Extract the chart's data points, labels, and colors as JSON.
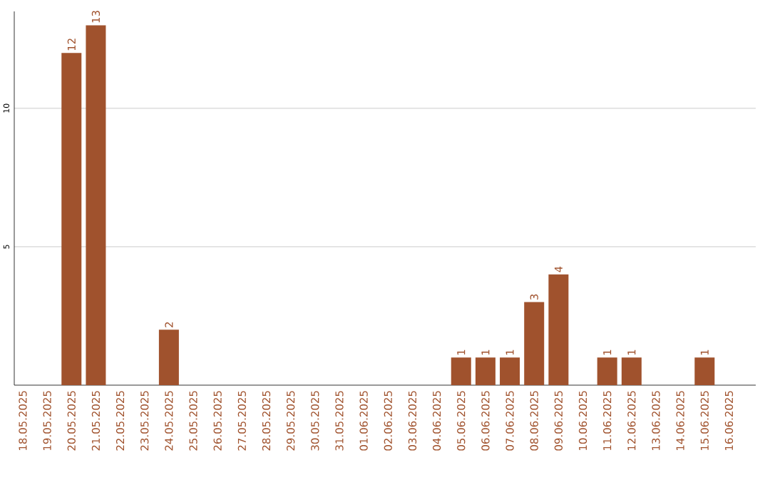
{
  "chart_data": {
    "type": "bar",
    "categories": [
      "18.05.2025",
      "19.05.2025",
      "20.05.2025",
      "21.05.2025",
      "22.05.2025",
      "23.05.2025",
      "24.05.2025",
      "25.05.2025",
      "26.05.2025",
      "27.05.2025",
      "28.05.2025",
      "29.05.2025",
      "30.05.2025",
      "31.05.2025",
      "01.06.2025",
      "02.06.2025",
      "03.06.2025",
      "04.06.2025",
      "05.06.2025",
      "06.06.2025",
      "07.06.2025",
      "08.06.2025",
      "09.06.2025",
      "10.06.2025",
      "11.06.2025",
      "12.06.2025",
      "13.06.2025",
      "14.06.2025",
      "15.06.2025",
      "16.06.2025"
    ],
    "values": [
      0,
      0,
      12,
      13,
      0,
      0,
      2,
      0,
      0,
      0,
      0,
      0,
      0,
      0,
      0,
      0,
      0,
      0,
      1,
      1,
      1,
      3,
      4,
      0,
      1,
      1,
      0,
      0,
      1,
      0
    ],
    "value_labels": [
      null,
      null,
      "12",
      "13",
      null,
      null,
      "2",
      null,
      null,
      null,
      null,
      null,
      null,
      null,
      null,
      null,
      null,
      null,
      "1",
      "1",
      "1",
      "3",
      "4",
      null,
      "1",
      "1",
      null,
      null,
      "1",
      null
    ],
    "color": "#a0522d",
    "ylim": [
      0,
      13.5
    ],
    "yticks": [
      5,
      10
    ],
    "grid": "y"
  }
}
